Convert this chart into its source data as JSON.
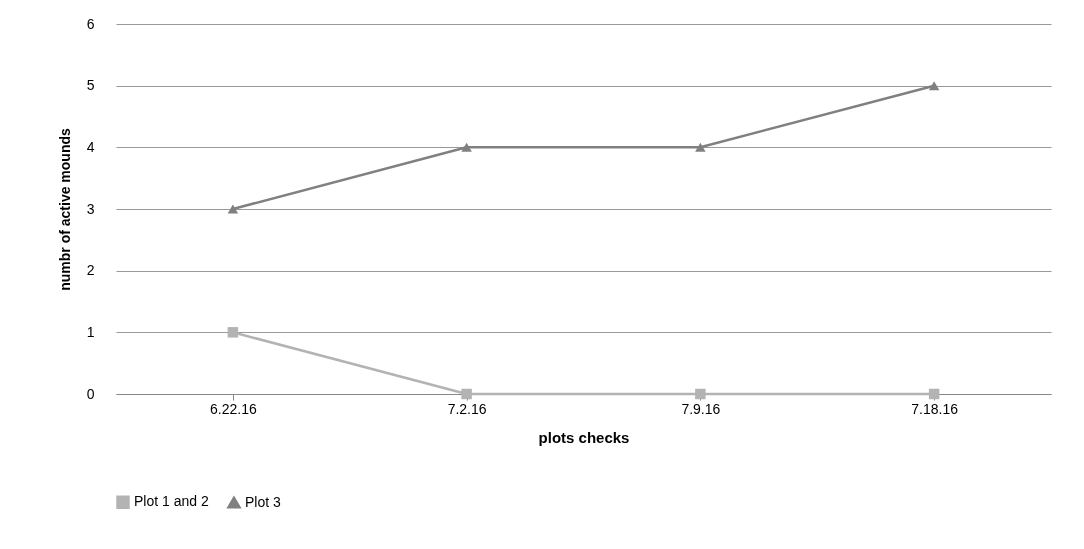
{
  "chart_data": {
    "type": "line",
    "xlabel": "plots checks",
    "ylabel": "numbr of active mounds",
    "categories": [
      "6.22.16",
      "7.2.16",
      "7.9.16",
      "7.18.16"
    ],
    "series": [
      {
        "name": "Plot 1 and 2",
        "color": "#b3b3b3",
        "marker": "square",
        "values": [
          1,
          0,
          0,
          0
        ]
      },
      {
        "name": "Plot 3",
        "color": "#808080",
        "marker": "triangle",
        "values": [
          3,
          4,
          4,
          5
        ]
      }
    ],
    "ylim": [
      0,
      6
    ],
    "yticks": [
      0,
      1,
      2,
      3,
      4,
      5,
      6
    ],
    "grid": "y",
    "legend": "bottom"
  }
}
